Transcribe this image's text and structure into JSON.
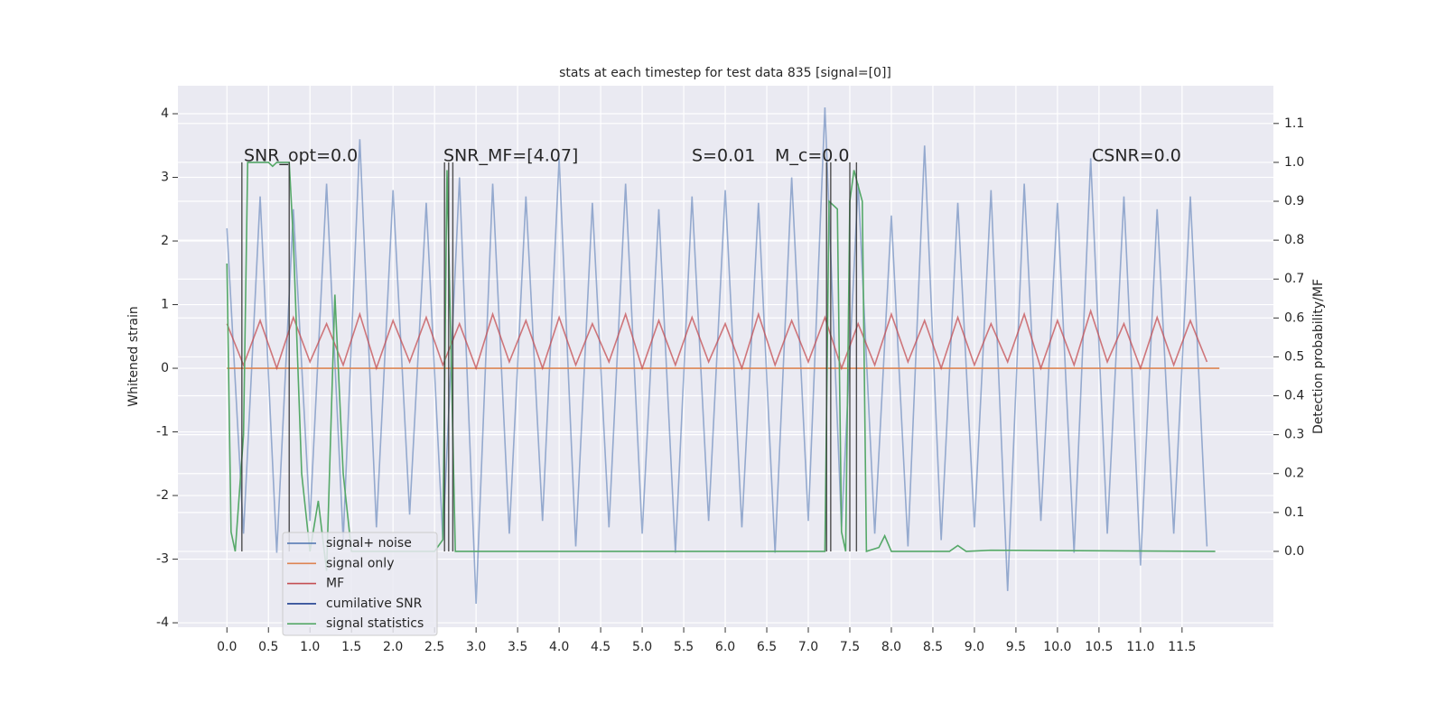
{
  "chart_data": {
    "type": "line",
    "title": "stats at each timestep for test data 835 [signal=[0]]",
    "ylabel": "Whitened strain",
    "y2label": "Detection probability/MF",
    "xlim": [
      -0.59,
      12.6
    ],
    "ylim": [
      -4.07,
      4.44
    ],
    "y2lim": [
      -0.195,
      1.197
    ],
    "xticks": [
      {
        "value": 0,
        "label": "0.0"
      },
      {
        "value": 0.5,
        "label": "0.5"
      },
      {
        "value": 1,
        "label": "1.0"
      },
      {
        "value": 1.5,
        "label": "1.5"
      },
      {
        "value": 2,
        "label": "2.0"
      },
      {
        "value": 2.5,
        "label": "2.5"
      },
      {
        "value": 3,
        "label": "3.0"
      },
      {
        "value": 3.5,
        "label": "3.5"
      },
      {
        "value": 4,
        "label": "4.0"
      },
      {
        "value": 4.5,
        "label": "4.5"
      },
      {
        "value": 5,
        "label": "5.0"
      },
      {
        "value": 5.5,
        "label": "5.5"
      },
      {
        "value": 6,
        "label": "6.0"
      },
      {
        "value": 6.5,
        "label": "6.5"
      },
      {
        "value": 7,
        "label": "7.0"
      },
      {
        "value": 7.5,
        "label": "7.5"
      },
      {
        "value": 8,
        "label": "8.0"
      },
      {
        "value": 8.5,
        "label": "8.5"
      },
      {
        "value": 9,
        "label": "9.0"
      },
      {
        "value": 9.5,
        "label": "9.5"
      },
      {
        "value": 10,
        "label": "10.0"
      },
      {
        "value": 10.5,
        "label": "10.5"
      },
      {
        "value": 11,
        "label": "11.0"
      },
      {
        "value": 11.5,
        "label": "11.5"
      }
    ],
    "yticks": [
      -4,
      -3,
      -2,
      -1,
      0,
      1,
      2,
      3,
      4
    ],
    "y2ticks": [
      {
        "value": 0,
        "label": "0.0"
      },
      {
        "value": 0.1,
        "label": "0.1"
      },
      {
        "value": 0.2,
        "label": "0.2"
      },
      {
        "value": 0.3,
        "label": "0.3"
      },
      {
        "value": 0.4,
        "label": "0.4"
      },
      {
        "value": 0.5,
        "label": "0.5"
      },
      {
        "value": 0.6,
        "label": "0.6"
      },
      {
        "value": 0.7,
        "label": "0.7"
      },
      {
        "value": 0.8,
        "label": "0.8"
      },
      {
        "value": 0.9,
        "label": "0.9"
      },
      {
        "value": 1,
        "label": "1.0"
      },
      {
        "value": 1.1,
        "label": "1.1"
      }
    ],
    "grid": true,
    "legend": "lower left",
    "series": [
      {
        "name": "signal+ noise",
        "color": "#4c72b0",
        "x": [
          0,
          0.2,
          0.4,
          0.6,
          0.8,
          1,
          1.2,
          1.4,
          1.6,
          1.8,
          2,
          2.2,
          2.4,
          2.6,
          2.8,
          3,
          3.2,
          3.4,
          3.6,
          3.8,
          4,
          4.2,
          4.4,
          4.6,
          4.8,
          5,
          5.2,
          5.4,
          5.6,
          5.8,
          6,
          6.2,
          6.4,
          6.6,
          6.8,
          7,
          7.2,
          7.4,
          7.6,
          7.8,
          8,
          8.2,
          8.4,
          8.6,
          8.8,
          9,
          9.2,
          9.4,
          9.6,
          9.8,
          10,
          10.2,
          10.4,
          10.6,
          10.8,
          11,
          11.2,
          11.4,
          11.6,
          11.8
        ],
        "values": [
          2.2,
          -2.6,
          2.7,
          -2.9,
          2.5,
          -2.4,
          2.9,
          -2.7,
          3.6,
          -2.5,
          2.8,
          -2.3,
          2.6,
          -2.7,
          3.0,
          -3.7,
          2.9,
          -2.6,
          2.7,
          -2.4,
          3.3,
          -2.8,
          2.6,
          -2.5,
          2.9,
          -2.6,
          2.5,
          -2.9,
          2.7,
          -2.4,
          2.8,
          -2.5,
          2.6,
          -2.9,
          3.0,
          -2.4,
          4.1,
          -2.5,
          2.9,
          -2.6,
          2.4,
          -2.8,
          3.5,
          -2.7,
          2.6,
          -2.5,
          2.8,
          -3.5,
          2.9,
          -2.4,
          2.6,
          -2.9,
          3.3,
          -2.6,
          2.7,
          -3.1,
          2.5,
          -2.6,
          2.7,
          -2.8
        ]
      },
      {
        "name": "signal only",
        "color": "#dd8452",
        "x": [
          0,
          11.95
        ],
        "values": [
          0.0,
          0.0
        ]
      },
      {
        "name": "MF",
        "color": "#c44e52",
        "x": [
          0,
          0.2,
          0.4,
          0.6,
          0.8,
          1,
          1.2,
          1.4,
          1.6,
          1.8,
          2,
          2.2,
          2.4,
          2.6,
          2.8,
          3,
          3.2,
          3.4,
          3.6,
          3.8,
          4,
          4.2,
          4.4,
          4.6,
          4.8,
          5,
          5.2,
          5.4,
          5.6,
          5.8,
          6,
          6.2,
          6.4,
          6.6,
          6.8,
          7,
          7.2,
          7.4,
          7.6,
          7.8,
          8,
          8.2,
          8.4,
          8.6,
          8.8,
          9,
          9.2,
          9.4,
          9.6,
          9.8,
          10,
          10.2,
          10.4,
          10.6,
          10.8,
          11,
          11.2,
          11.4,
          11.6,
          11.8
        ],
        "values": [
          0.7,
          0.05,
          0.75,
          0.0,
          0.8,
          0.1,
          0.7,
          0.05,
          0.85,
          0.0,
          0.75,
          0.1,
          0.8,
          0.05,
          0.7,
          0.0,
          0.85,
          0.1,
          0.75,
          0.0,
          0.8,
          0.05,
          0.7,
          0.1,
          0.85,
          0.0,
          0.75,
          0.05,
          0.8,
          0.1,
          0.7,
          0.0,
          0.85,
          0.05,
          0.75,
          0.1,
          0.8,
          0.0,
          0.7,
          0.05,
          0.85,
          0.1,
          0.75,
          0.0,
          0.8,
          0.05,
          0.7,
          0.1,
          0.85,
          0.0,
          0.75,
          0.05,
          0.9,
          0.1,
          0.7,
          0.0,
          0.8,
          0.05,
          0.75,
          0.1
        ]
      },
      {
        "name": "cumilative SNR",
        "color": "#1f3f8f",
        "x": [],
        "values": []
      },
      {
        "name": "signal statistics",
        "color": "#55a868",
        "axis": "y2",
        "x": [
          0,
          0.05,
          0.1,
          0.2,
          0.25,
          0.5,
          0.55,
          0.6,
          0.75,
          0.8,
          0.9,
          1.0,
          1.1,
          1.2,
          1.3,
          1.4,
          1.5,
          2.5,
          2.6,
          2.65,
          2.7,
          2.75,
          7.2,
          7.25,
          7.35,
          7.4,
          7.45,
          7.5,
          7.55,
          7.65,
          7.7,
          7.85,
          7.92,
          8.0,
          8.7,
          8.8,
          8.9,
          9.2,
          11.9
        ],
        "values": [
          0.74,
          0.05,
          0.0,
          0.3,
          1.0,
          1.0,
          0.99,
          1.0,
          1.0,
          0.8,
          0.2,
          0.0,
          0.13,
          -0.05,
          0.66,
          0.2,
          0.0,
          0.0,
          0.03,
          0.98,
          0.5,
          0.0,
          0.0,
          0.9,
          0.88,
          0.05,
          0.0,
          0.9,
          0.98,
          0.9,
          0.0,
          0.01,
          0.04,
          0.0,
          0.0,
          0.015,
          0.0,
          0.003,
          0.0
        ]
      }
    ],
    "vlines": {
      "x": [
        0.18,
        0.75,
        2.62,
        2.67,
        2.72,
        7.22,
        7.27,
        7.5,
        7.58
      ],
      "ymin": 0,
      "ymax": 1
    },
    "annotations": [
      "SNR_opt=0.0",
      "SNR_MF=[4.07]",
      "S=0.01",
      "M_c=0.0",
      "CSNR=0.0"
    ]
  }
}
